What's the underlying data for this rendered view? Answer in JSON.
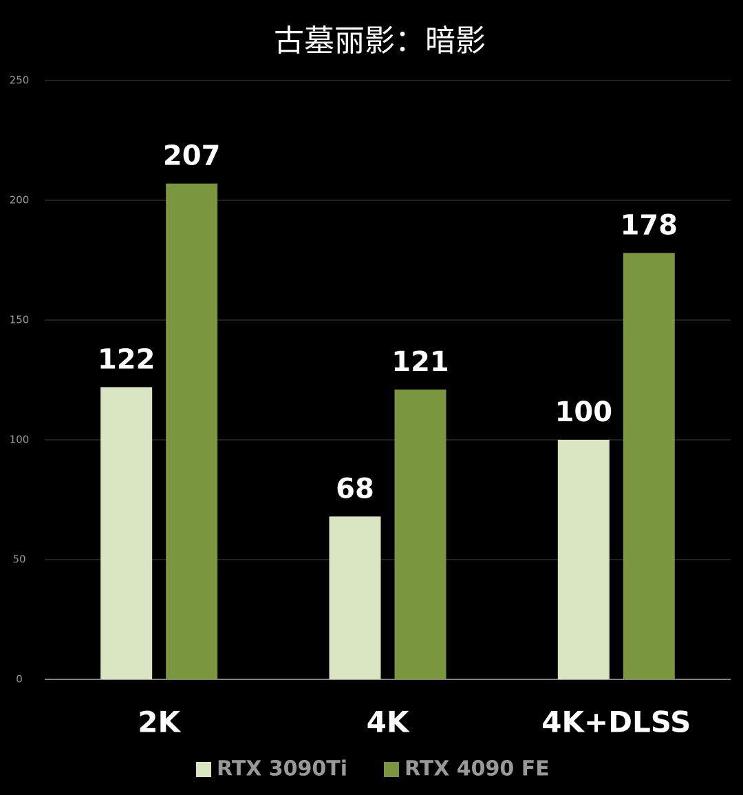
{
  "chart_data": {
    "type": "bar",
    "title": "古墓丽影：暗影",
    "categories": [
      "2K",
      "4K",
      "4K+DLSS"
    ],
    "series": [
      {
        "name": "RTX 3090Ti",
        "color": "#d9e4c0",
        "values": [
          122,
          68,
          100
        ]
      },
      {
        "name": "RTX 4090 FE",
        "color": "#7a963e",
        "values": [
          207,
          121,
          178
        ]
      }
    ],
    "ylim": [
      0,
      250
    ],
    "yticks": [
      0,
      50,
      100,
      150,
      200,
      250
    ],
    "grid": true,
    "legend": "bottom"
  }
}
